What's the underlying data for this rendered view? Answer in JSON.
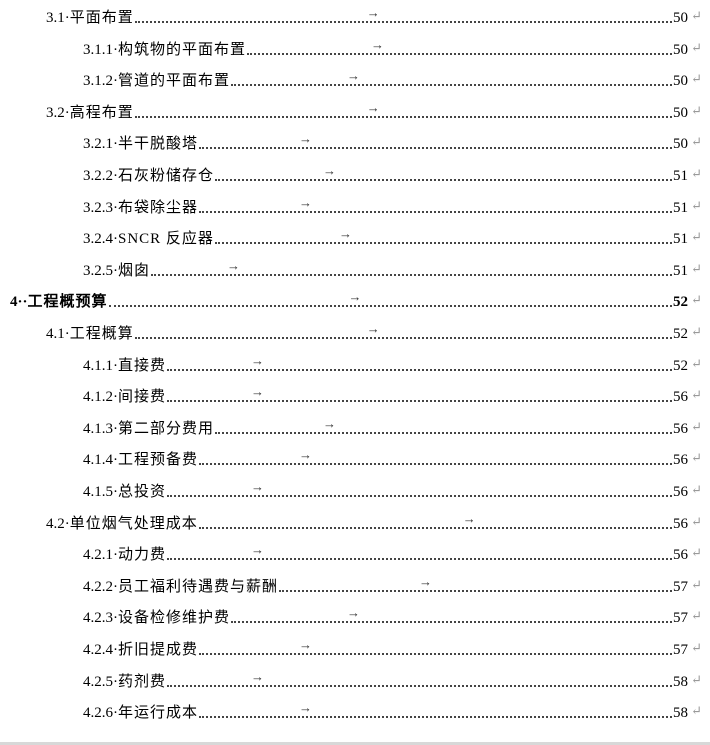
{
  "toc": [
    {
      "level": 2,
      "num": "3.1·",
      "title": "平面布置",
      "page": "50"
    },
    {
      "level": 3,
      "num": "3.1.1·",
      "title": "构筑物的平面布置",
      "page": "50"
    },
    {
      "level": 3,
      "num": "3.1.2·",
      "title": "管道的平面布置",
      "page": "50"
    },
    {
      "level": 2,
      "num": "3.2·",
      "title": "高程布置",
      "page": "50"
    },
    {
      "level": 3,
      "num": "3.2.1·",
      "title": "半干脱酸塔",
      "page": "50"
    },
    {
      "level": 3,
      "num": "3.2.2·",
      "title": "石灰粉储存仓",
      "page": "51"
    },
    {
      "level": 3,
      "num": "3.2.3·",
      "title": "布袋除尘器",
      "page": "51"
    },
    {
      "level": 3,
      "num": "3.2.4·",
      "title": "SNCR 反应器",
      "page": "51"
    },
    {
      "level": 3,
      "num": "3.2.5·",
      "title": "烟囱",
      "page": "51"
    },
    {
      "level": 1,
      "num": "4··",
      "title": "工程概预算",
      "page": "52"
    },
    {
      "level": 2,
      "num": "4.1·",
      "title": "工程概算",
      "page": "52"
    },
    {
      "level": 3,
      "num": "4.1.1·",
      "title": "直接费",
      "page": "52"
    },
    {
      "level": 3,
      "num": "4.1.2·",
      "title": "间接费",
      "page": "56"
    },
    {
      "level": 3,
      "num": "4.1.3·",
      "title": "第二部分费用",
      "page": "56"
    },
    {
      "level": 3,
      "num": "4.1.4·",
      "title": "工程预备费",
      "page": "56"
    },
    {
      "level": 3,
      "num": "4.1.5·",
      "title": "总投资",
      "page": "56"
    },
    {
      "level": 2,
      "num": "4.2·",
      "title": "单位烟气处理成本",
      "page": "56"
    },
    {
      "level": 3,
      "num": "4.2.1·",
      "title": "动力费",
      "page": "56"
    },
    {
      "level": 3,
      "num": "4.2.2·",
      "title": "员工福利待遇费与薪酬",
      "page": "57"
    },
    {
      "level": 3,
      "num": "4.2.3·",
      "title": "设备检修维护费",
      "page": "57"
    },
    {
      "level": 3,
      "num": "4.2.4·",
      "title": "折旧提成费",
      "page": "57"
    },
    {
      "level": 3,
      "num": "4.2.5·",
      "title": "药剂费",
      "page": "58"
    },
    {
      "level": 3,
      "num": "4.2.6·",
      "title": "年运行成本",
      "page": "58"
    }
  ],
  "marks": {
    "tab": "→",
    "paragraph": "↵"
  }
}
